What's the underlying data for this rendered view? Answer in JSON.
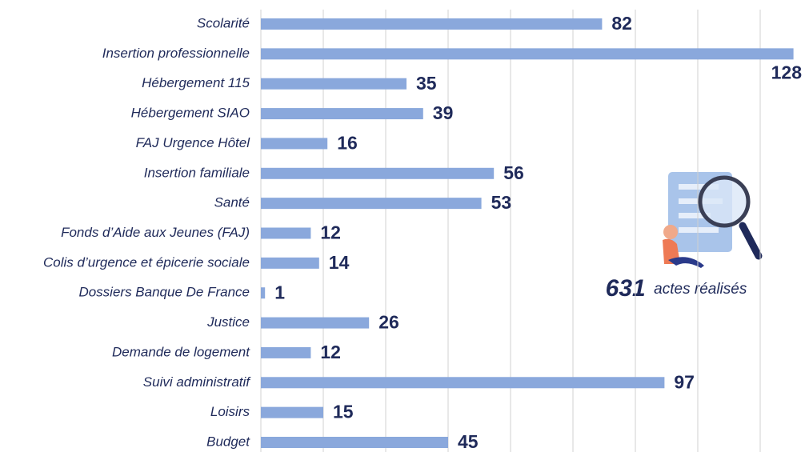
{
  "chart_data": {
    "type": "barh",
    "categories": [
      "Scolarité",
      "Insertion professionnelle",
      "Hébergement 115",
      "Hébergement SIAO",
      "FAJ Urgence Hôtel",
      "Insertion familiale",
      "Santé",
      "Fonds d’Aide aux Jeunes (FAJ)",
      "Colis d’urgence et épicerie sociale",
      "Dossiers Banque De France",
      "Justice",
      "Demande de logement",
      "Suivi administratif",
      "Loisirs",
      "Budget"
    ],
    "values": [
      82,
      128,
      35,
      39,
      16,
      56,
      53,
      12,
      14,
      1,
      26,
      12,
      97,
      15,
      45
    ],
    "color": "#8aa8dc",
    "xlim": [
      0,
      130
    ],
    "xticks": [
      0,
      15,
      30,
      45,
      60,
      75,
      90,
      105,
      120
    ],
    "grid": true,
    "annotation": {
      "total": "631",
      "text": "actes réalisés"
    }
  }
}
